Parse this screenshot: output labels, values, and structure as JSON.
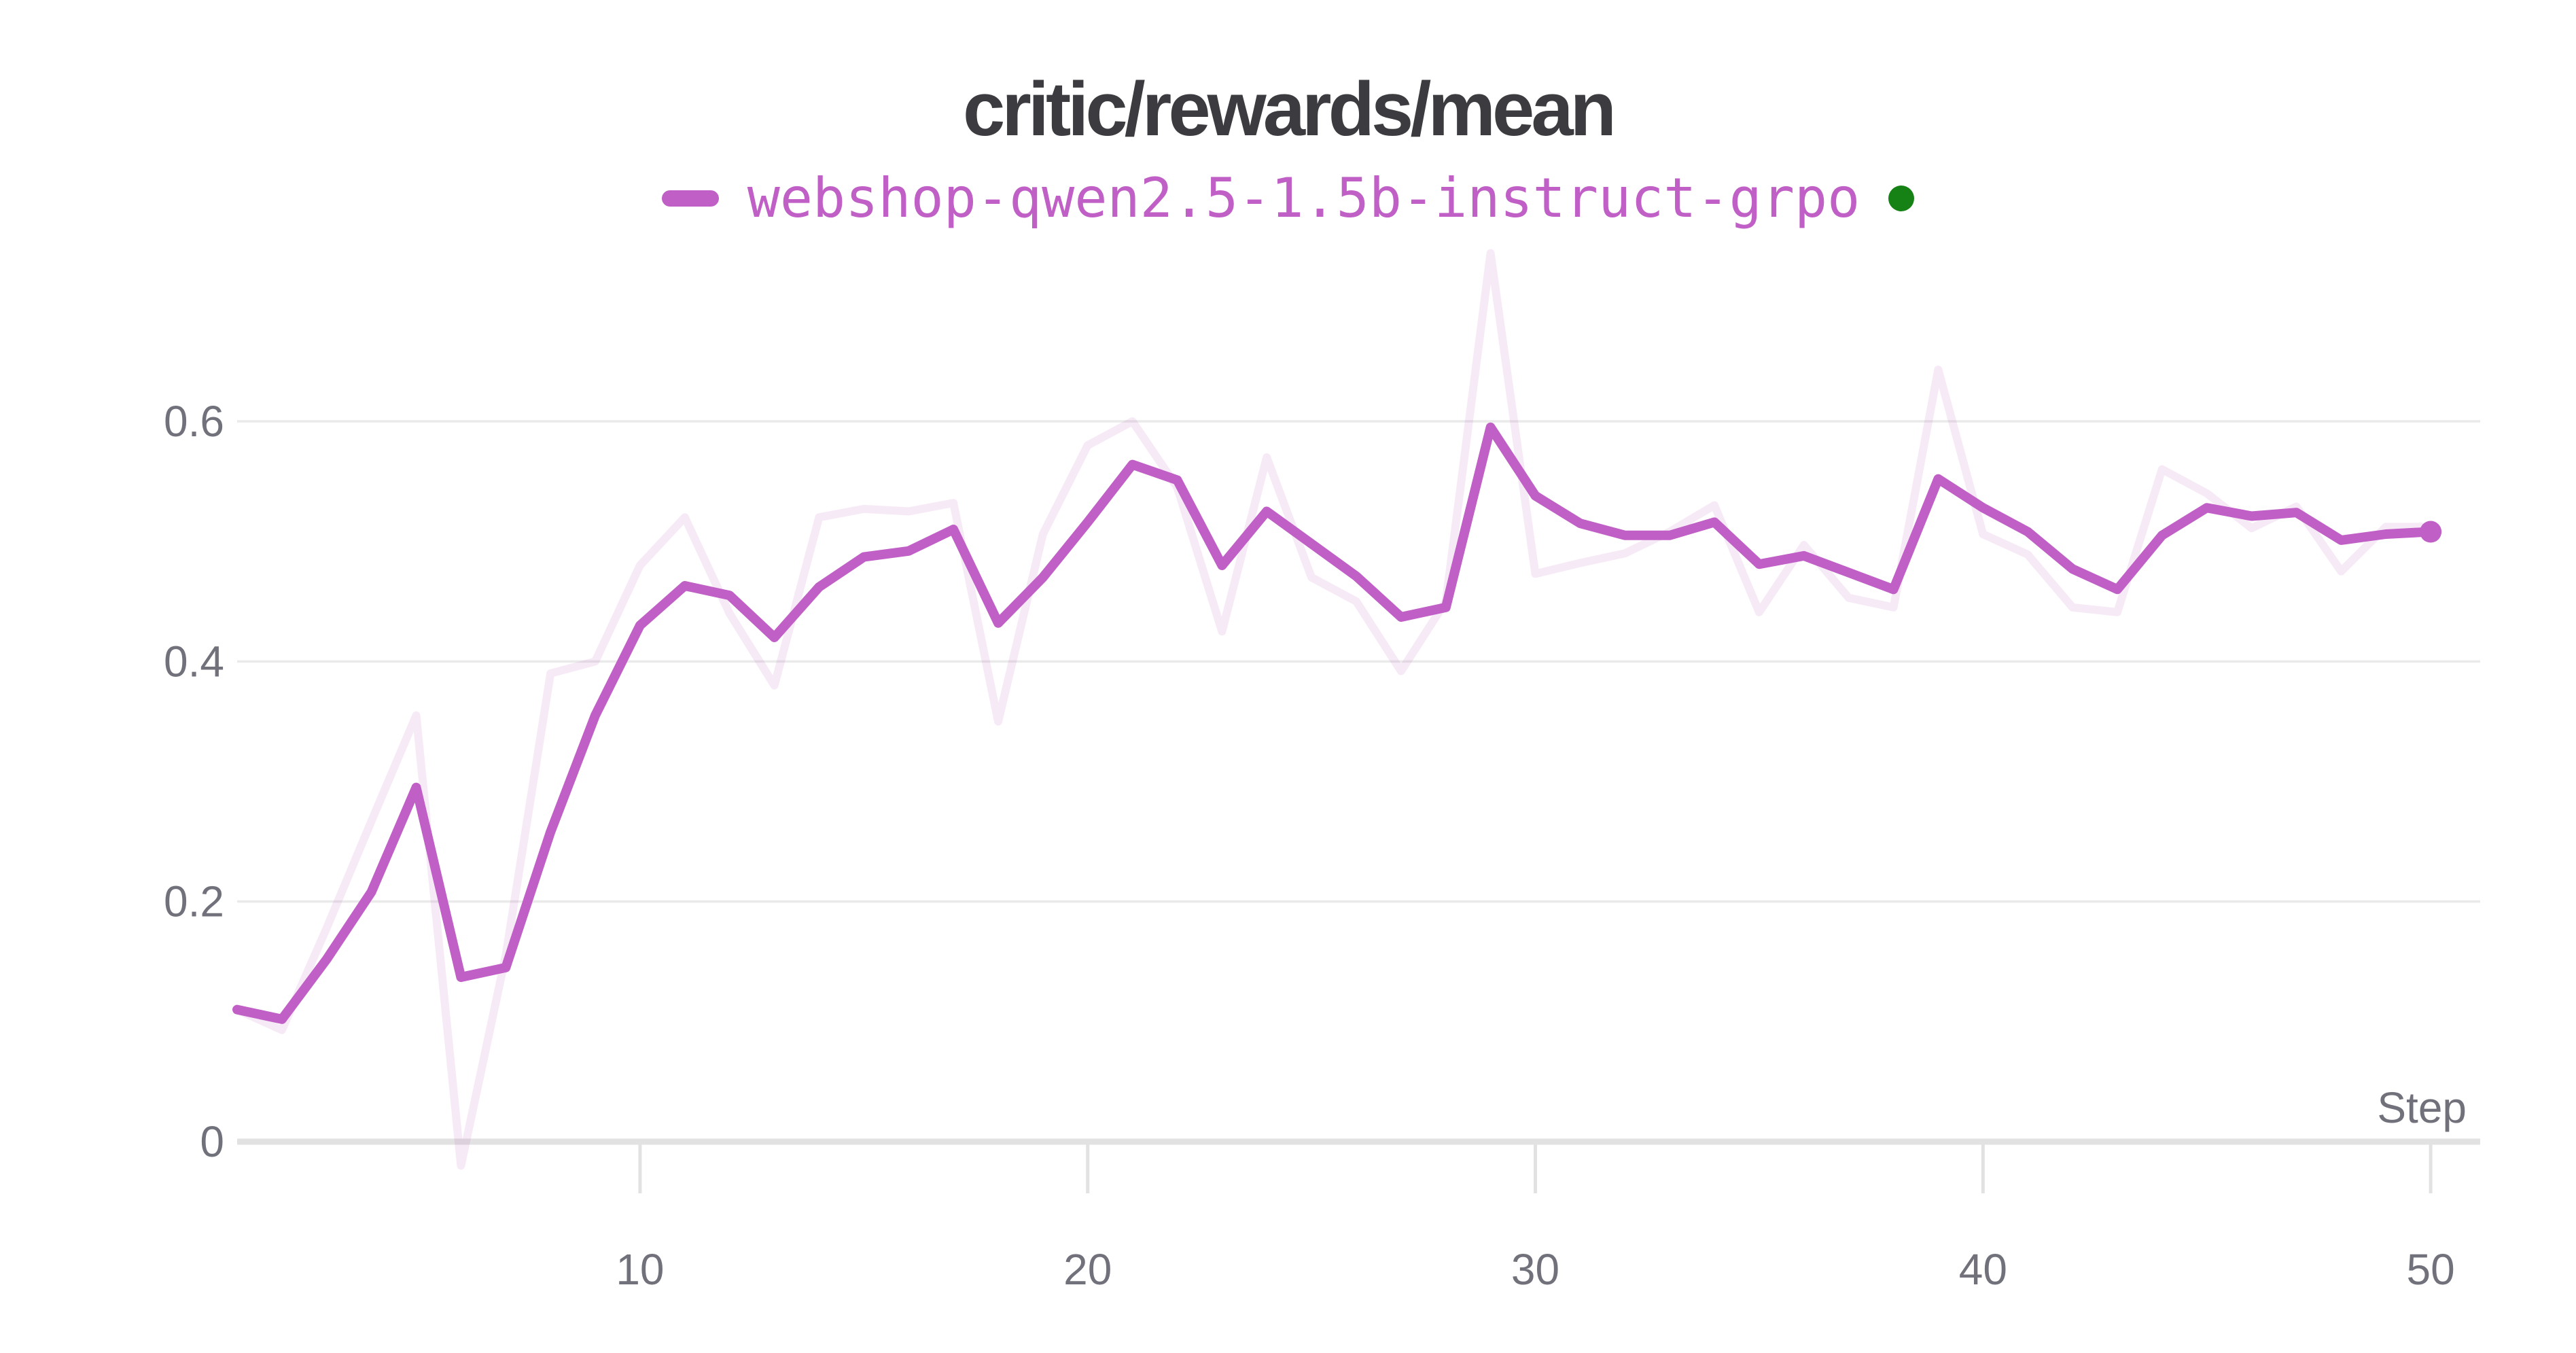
{
  "title": "critic/rewards/mean",
  "legend": {
    "run_name": "webshop-qwen2.5-1.5b-instruct-grpo",
    "marker_color": "#C05FC5",
    "status_dot_color": "#168216"
  },
  "colors": {
    "line": "#C05FC5",
    "line_faint": "rgba(192,95,197,0.13)",
    "status_green": "#168216",
    "title_text": "#3B3B40",
    "axis_text": "#71717B",
    "gridline": "#EAEAEA",
    "axis_line": "#E2E2E2"
  },
  "chart_data": {
    "type": "line",
    "title": "critic/rewards/mean",
    "xlabel": "Step",
    "ylabel": "",
    "grid": true,
    "legend_position": "top",
    "xlim": [
      1,
      51
    ],
    "ylim": [
      -0.08,
      0.78
    ],
    "x_ticks": [
      10,
      20,
      30,
      40,
      50
    ],
    "y_ticks": [
      0,
      0.2,
      0.4,
      0.6
    ],
    "y_tick_labels": [
      "0",
      "0.2",
      "0.4",
      "0.6"
    ],
    "x": [
      1,
      2,
      3,
      4,
      5,
      6,
      7,
      8,
      9,
      10,
      11,
      12,
      13,
      14,
      15,
      16,
      17,
      18,
      19,
      20,
      21,
      22,
      23,
      24,
      25,
      26,
      27,
      28,
      29,
      30,
      31,
      32,
      33,
      34,
      35,
      36,
      37,
      38,
      39,
      40,
      41,
      42,
      43,
      44,
      45,
      46,
      47,
      48,
      49,
      50
    ],
    "series": [
      {
        "name": "webshop-qwen2.5-1.5b-instruct-grpo (raw)",
        "role": "raw-unsmoothed",
        "color": "rgba(192,95,197,0.13)",
        "values": [
          0.11,
          0.093,
          0.178,
          0.267,
          0.355,
          -0.02,
          0.155,
          0.39,
          0.4,
          0.48,
          0.52,
          0.44,
          0.38,
          0.52,
          0.527,
          0.525,
          0.532,
          0.35,
          0.506,
          0.58,
          0.6,
          0.545,
          0.425,
          0.57,
          0.47,
          0.45,
          0.392,
          0.45,
          0.74,
          0.473,
          0.482,
          0.49,
          0.508,
          0.53,
          0.441,
          0.497,
          0.453,
          0.445,
          0.643,
          0.506,
          0.489,
          0.445,
          0.441,
          0.56,
          0.54,
          0.511,
          0.529,
          0.475,
          0.512,
          0.512
        ]
      },
      {
        "name": "webshop-qwen2.5-1.5b-instruct-grpo",
        "role": "smoothed",
        "color": "#C05FC5",
        "values": [
          0.11,
          0.102,
          0.152,
          0.208,
          0.295,
          0.137,
          0.145,
          0.258,
          0.355,
          0.43,
          0.463,
          0.455,
          0.42,
          0.462,
          0.487,
          0.492,
          0.51,
          0.432,
          0.47,
          0.516,
          0.564,
          0.551,
          0.48,
          0.525,
          0.498,
          0.471,
          0.437,
          0.445,
          0.595,
          0.538,
          0.515,
          0.505,
          0.505,
          0.516,
          0.481,
          0.488,
          0.474,
          0.46,
          0.552,
          0.528,
          0.508,
          0.477,
          0.46,
          0.505,
          0.528,
          0.521,
          0.524,
          0.501,
          0.506,
          0.508
        ]
      }
    ],
    "end_marker": {
      "step": 50,
      "value": 0.508
    }
  }
}
